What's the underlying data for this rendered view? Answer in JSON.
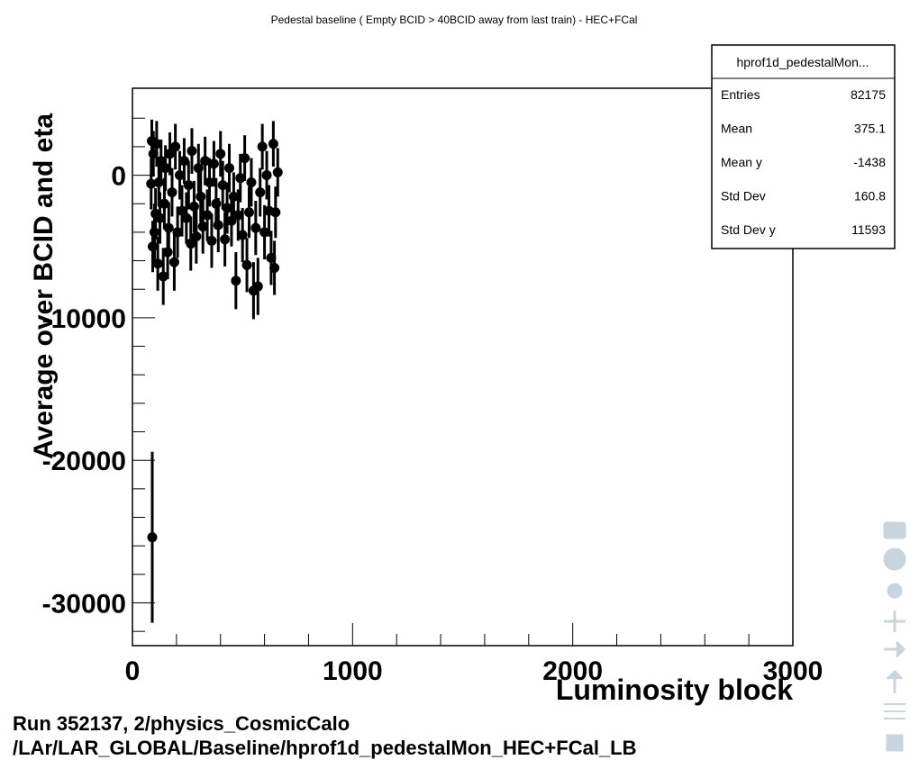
{
  "chart_data": {
    "type": "errorbar",
    "title": "Pedestal baseline ( Empty BCID > 40BCID away from last train) - HEC+FCal",
    "x_label": "Luminosity block",
    "y_label": "Average over BCID and eta",
    "x": [
      85,
      88,
      92,
      95,
      100,
      105,
      110,
      115,
      120,
      125,
      130,
      140,
      145,
      150,
      160,
      165,
      170,
      180,
      190,
      195,
      205,
      215,
      225,
      235,
      245,
      255,
      265,
      270,
      280,
      290,
      300,
      310,
      320,
      330,
      340,
      350,
      360,
      370,
      380,
      390,
      400,
      410,
      420,
      430,
      440,
      450,
      460,
      470,
      480,
      490,
      500,
      510,
      520,
      530,
      540,
      550,
      560,
      570,
      580,
      590,
      600,
      610,
      620,
      630,
      640,
      645,
      650,
      660,
      90
    ],
    "values": [
      -600,
      2400,
      -5000,
      1500,
      -4000,
      -2700,
      2200,
      -6200,
      -500,
      -3000,
      1000,
      -7100,
      -2000,
      500,
      -5400,
      -3700,
      1500,
      -1200,
      -6100,
      2000,
      -4000,
      0,
      -2500,
      1000,
      -3000,
      -700,
      -4800,
      1700,
      -2200,
      -4300,
      500,
      -1500,
      -3600,
      1000,
      -2800,
      -500,
      -4600,
      800,
      -2000,
      -3500,
      1500,
      -700,
      -4500,
      -2300,
      500,
      -3200,
      -1500,
      -7400,
      -2800,
      -200,
      -4200,
      1200,
      -6300,
      -2600,
      -500,
      -8100,
      -3700,
      -7800,
      -1200,
      2000,
      -4000,
      0,
      -2500,
      -5800,
      2200,
      -6500,
      -2600,
      200,
      -25400
    ],
    "errors": [
      1800,
      1500,
      1800,
      1600,
      2000,
      1800,
      1600,
      1900,
      1700,
      1800,
      1500,
      2000,
      1800,
      1600,
      1900,
      1800,
      1500,
      1700,
      2000,
      1600,
      1800,
      1700,
      1800,
      1600,
      1800,
      1700,
      1900,
      1600,
      1800,
      1900,
      1700,
      1800,
      1900,
      1700,
      1800,
      1700,
      1900,
      1600,
      1800,
      1900,
      1600,
      1700,
      1900,
      1800,
      1700,
      1800,
      1700,
      2000,
      1800,
      1700,
      1900,
      1600,
      1900,
      1800,
      1700,
      2000,
      1900,
      2000,
      1700,
      1600,
      1900,
      1700,
      1800,
      1900,
      1600,
      1900,
      1800,
      1700,
      6000
    ],
    "color": "#000000",
    "xlim": [
      0,
      3000
    ],
    "xticks": [
      0,
      1000,
      2000,
      3000
    ],
    "xminorticks": [
      200,
      400,
      600,
      800,
      1200,
      1400,
      1600,
      1800,
      2200,
      2400,
      2600,
      2800
    ],
    "ylim": [
      -33000,
      6100
    ],
    "yticks": [
      -30000,
      -20000,
      -10000,
      0
    ],
    "yminorticks": [
      -32000,
      -28000,
      -26000,
      -24000,
      -22000,
      -18000,
      -16000,
      -14000,
      -12000,
      -8000,
      -6000,
      -4000,
      -2000,
      2000,
      4000
    ],
    "stats": {
      "title": "hprof1d_pedestalMon...",
      "rows": [
        [
          "Entries",
          "82175"
        ],
        [
          "Mean",
          "375.1"
        ],
        [
          "Mean y",
          "-1438"
        ],
        [
          "Std Dev",
          "160.8"
        ],
        [
          "Std Dev y",
          "11593"
        ]
      ]
    },
    "footer": [
      "Run 352137, 2/physics_CosmicCalo",
      "/LAr/LAR_GLOBAL/Baseline/hprof1d_pedestalMon_HEC+FCal_LB"
    ]
  }
}
